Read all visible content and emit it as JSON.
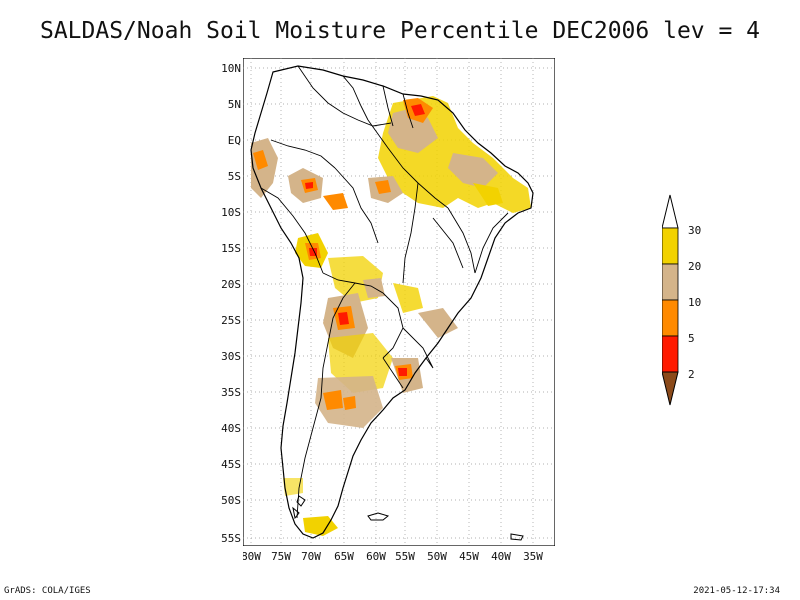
{
  "title": "SALDAS/Noah Soil Moisture Percentile DEC2006 lev = 4",
  "map": {
    "lat_labels": [
      "10N",
      "5N",
      "EQ",
      "5S",
      "10S",
      "15S",
      "20S",
      "25S",
      "30S",
      "35S",
      "40S",
      "45S",
      "50S",
      "55S"
    ],
    "lon_labels": [
      "80W",
      "75W",
      "70W",
      "65W",
      "60W",
      "55W",
      "50W",
      "45W",
      "40W",
      "35W"
    ],
    "grid": "dotted"
  },
  "colorbar": {
    "labels": [
      "30",
      "20",
      "10",
      "5",
      "2"
    ],
    "colors": {
      "top_arrow": "#ffffff",
      "band_20_30": "#f2d200",
      "band_10_20": "#d4b48a",
      "band_5_10": "#ff8a00",
      "band_2_5": "#ff1a00",
      "bottom_arrow": "#8b4a1a"
    }
  },
  "footer": {
    "left": "GrADS: COLA/IGES",
    "right": "2021-05-12-17:34"
  }
}
